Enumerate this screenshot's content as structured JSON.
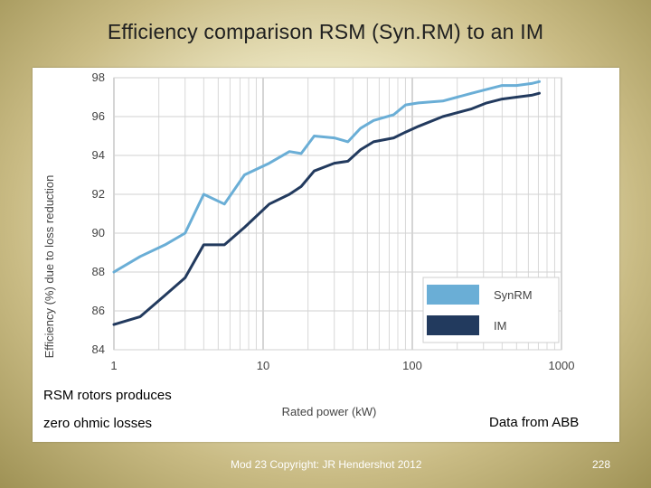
{
  "slide": {
    "title": "Efficiency comparison RSM (Syn.RM) to an IM",
    "caption_line1": "RSM rotors produces",
    "caption_line2": "zero ohmic losses",
    "source_note": "Data from ABB",
    "footer": "Mod 23 Copyright: JR Hendershot 2012",
    "page_number": "228"
  },
  "chart_data": {
    "type": "line",
    "xscale": "log",
    "xlabel": "Rated power (kW)",
    "ylabel": "Efficiency (%) due to loss reduction",
    "xlim": [
      1,
      1000
    ],
    "ylim": [
      84,
      98
    ],
    "xticks": [
      1,
      10,
      100,
      1000
    ],
    "xtick_labels": [
      "1",
      "10",
      "100",
      "1000"
    ],
    "yticks": [
      84,
      86,
      88,
      90,
      92,
      94,
      96,
      98
    ],
    "ytick_labels": [
      "84",
      "86",
      "88",
      "90",
      "92",
      "94",
      "96",
      "98"
    ],
    "grid": true,
    "legend_position": "bottom-right",
    "series": [
      {
        "name": "SynRM",
        "color": "#6aaed6",
        "x": [
          1,
          1.5,
          2.2,
          3,
          4,
          5.5,
          7.5,
          11,
          15,
          18,
          22,
          30,
          37,
          45,
          55,
          75,
          90,
          110,
          160,
          200,
          250,
          315,
          400,
          500,
          630,
          710
        ],
        "y": [
          88.0,
          88.8,
          89.4,
          90.0,
          92.0,
          91.5,
          93.0,
          93.6,
          94.2,
          94.1,
          95.0,
          94.9,
          94.7,
          95.4,
          95.8,
          96.1,
          96.6,
          96.7,
          96.8,
          97.0,
          97.2,
          97.4,
          97.6,
          97.6,
          97.7,
          97.8
        ]
      },
      {
        "name": "IM",
        "color": "#223a5e",
        "x": [
          1,
          1.5,
          2.2,
          3,
          4,
          5.5,
          7.5,
          11,
          15,
          18,
          22,
          30,
          37,
          45,
          55,
          75,
          90,
          110,
          160,
          200,
          250,
          315,
          400,
          500,
          630,
          710
        ],
        "y": [
          85.3,
          85.7,
          86.8,
          87.7,
          89.4,
          89.4,
          90.3,
          91.5,
          92.0,
          92.4,
          93.2,
          93.6,
          93.7,
          94.3,
          94.7,
          94.9,
          95.2,
          95.5,
          96.0,
          96.2,
          96.4,
          96.7,
          96.9,
          97.0,
          97.1,
          97.2
        ]
      }
    ]
  }
}
